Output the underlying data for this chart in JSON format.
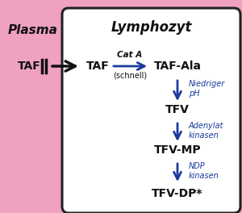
{
  "bg_color": "#f0a0c0",
  "box_color": "#ffffff",
  "box_edge_color": "#222222",
  "blue": "#1a3a9e",
  "dark": "#111111",
  "plasma_text": "Plasma",
  "lymph_text": "Lymphozyt",
  "taf_left": "TAF",
  "taf_right": "TAF",
  "taf_ala": "TAF-Ala",
  "tfv": "TFV",
  "tfv_mp": "TFV-MP",
  "tfv_dp": "TFV-DP*",
  "cat_a": "Cat A",
  "schnell": "(schnell)",
  "niedriger": "Niedriger\npH",
  "adenylat": "Adenylat\nkinasen",
  "ndp": "NDP\nkinasen"
}
